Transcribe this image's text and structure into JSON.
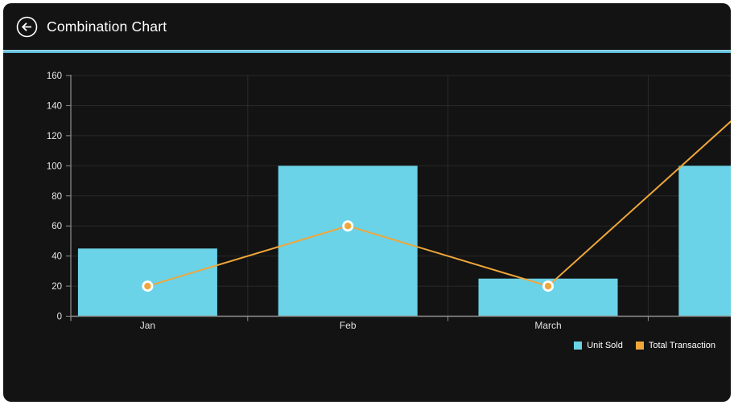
{
  "header": {
    "title": "Combination Chart"
  },
  "chart_data": {
    "type": "combination-bar-line",
    "categories": [
      "Jan",
      "Feb",
      "March",
      ""
    ],
    "series": [
      {
        "name": "Unit Sold",
        "type": "bar",
        "color": "#6bd3e7",
        "values": [
          45,
          100,
          25,
          100
        ]
      },
      {
        "name": "Total Transaction",
        "type": "line",
        "color": "#efa63a",
        "values": [
          20,
          60,
          20,
          140
        ]
      }
    ],
    "ylim": [
      0,
      160
    ],
    "ytick_step": 20,
    "yticks": [
      0,
      20,
      40,
      60,
      80,
      100,
      120,
      140,
      160
    ],
    "grid": true,
    "legend_position": "bottom-right",
    "clipped_right": "fourth category bar and line point extend past the right edge; its label is not visible"
  },
  "colors": {
    "page_background": "#ffffff",
    "window_background": "#131313",
    "accent_separator": "#54b6d6",
    "bar": "#6bd3e7",
    "line": "#efa63a",
    "marker_ring": "#ffffff",
    "grid": "#2a2a2a",
    "axis": "#8f8f8f",
    "tick_text": "#e6e6e6",
    "title_text": "#ffffff"
  },
  "icons": {
    "back": "left-arrow-in-circle"
  }
}
